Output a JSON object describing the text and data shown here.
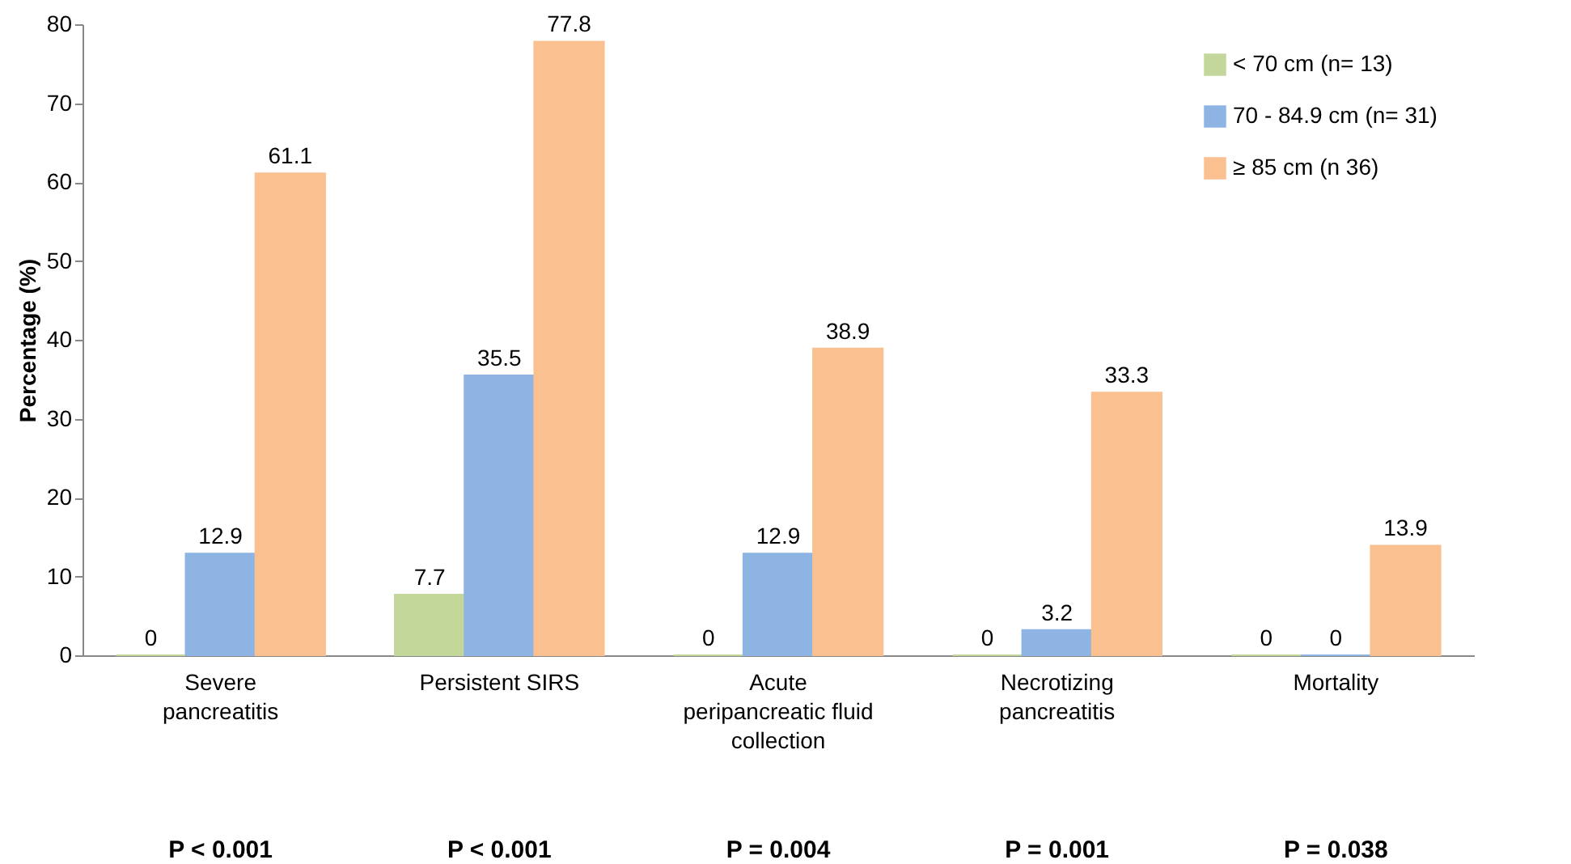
{
  "chart_data": {
    "type": "bar",
    "ylabel": "Percentage (%)",
    "categories": [
      "Severe\npancreatitis",
      "Persistent SIRS",
      "Acute\nperipancreatic fluid\ncollection",
      "Necrotizing\npancreatitis",
      "Mortality"
    ],
    "series": [
      {
        "name": "< 70 cm  (n= 13)",
        "color": "#c4d79b",
        "values": [
          0,
          7.7,
          0,
          0,
          0
        ]
      },
      {
        "name": "70 - 84.9 cm  (n= 31)",
        "color": "#8eb4e3",
        "values": [
          12.9,
          35.5,
          12.9,
          3.2,
          0
        ]
      },
      {
        "name": "≥ 85 cm  (n 36)",
        "color": "#fac090",
        "values": [
          61.1,
          77.8,
          38.9,
          33.3,
          13.9
        ]
      }
    ],
    "ylim": [
      0,
      80
    ],
    "yticks": [
      0,
      10,
      20,
      30,
      40,
      50,
      60,
      70,
      80
    ],
    "grid": false,
    "legend": "top right",
    "data_labels": true,
    "annotations": [
      "P < 0.001",
      "P < 0.001",
      "P = 0.004",
      "P = 0.001",
      "P = 0.038"
    ]
  }
}
